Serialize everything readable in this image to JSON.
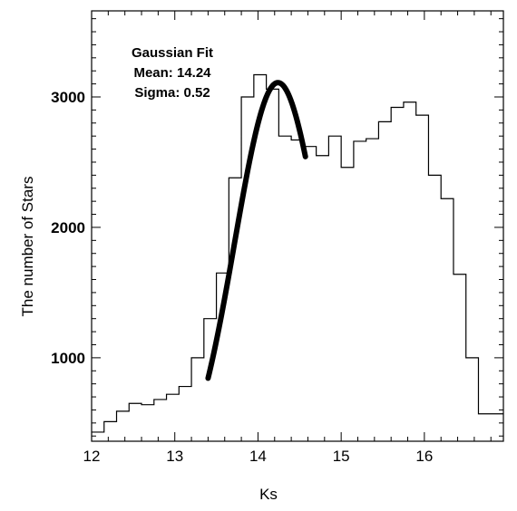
{
  "chart_data": {
    "type": "histogram",
    "title": "",
    "xlabel": "Ks",
    "ylabel": "The number of Stars",
    "xlim": [
      12.0,
      16.95
    ],
    "ylim": [
      360,
      3660
    ],
    "x_ticks": [
      12,
      13,
      14,
      15,
      16
    ],
    "x_tick_labels": [
      "12",
      "13",
      "14",
      "15",
      "16"
    ],
    "y_ticks": [
      1000,
      2000,
      3000
    ],
    "y_tick_labels": [
      "1000",
      "2000",
      "3000"
    ],
    "grid": false,
    "legend": "none",
    "histogram": {
      "name": "",
      "bin_edges": [
        12.0,
        12.15,
        12.3,
        12.45,
        12.6,
        12.75,
        12.9,
        13.05,
        13.2,
        13.35,
        13.5,
        13.65,
        13.8,
        13.95,
        14.1,
        14.25,
        14.4,
        14.55,
        14.7,
        14.85,
        15.0,
        15.15,
        15.3,
        15.45,
        15.6,
        15.75,
        15.9,
        16.05,
        16.2,
        16.35,
        16.5,
        16.65,
        16.8,
        16.95
      ],
      "counts": [
        430,
        510,
        590,
        650,
        640,
        680,
        720,
        780,
        1000,
        1300,
        1650,
        2380,
        3000,
        3170,
        3060,
        2700,
        2670,
        2620,
        2550,
        2700,
        2460,
        2660,
        2680,
        2810,
        2920,
        2960,
        2860,
        2400,
        2220,
        1640,
        1000,
        570,
        570
      ],
      "color": "#000000"
    },
    "fit_curve": {
      "type": "gaussian",
      "x_range": [
        13.4,
        14.57
      ],
      "mean": 14.24,
      "sigma": 0.52,
      "peak": 3110,
      "color": "#000000"
    },
    "annotation": {
      "line1": "Gaussian Fit",
      "line2": "Mean: 14.24",
      "line3": "Sigma: 0.52"
    }
  }
}
